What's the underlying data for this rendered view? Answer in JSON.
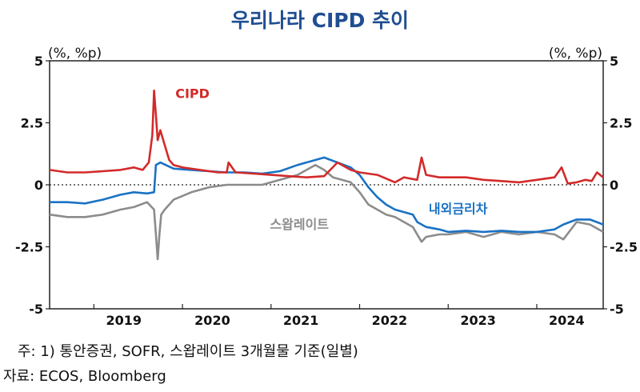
{
  "title": "우리나라 CIPD 추이",
  "units": {
    "left": "(%, %p)",
    "right": "(%, %p)"
  },
  "notes": {
    "source_note": "주: 1) 통안증권, SOFR, 스왑레이트 3개월물 기준(일별)",
    "source": "자료: ECOS, Bloomberg"
  },
  "chart_data": {
    "type": "line",
    "title": "우리나라 CIPD 추이",
    "xlabel": "",
    "ylabel": "(%, %p)",
    "xlim": [
      2018.5,
      2024.75
    ],
    "ylim": [
      -5,
      5
    ],
    "x_ticks": [
      "2019",
      "2020",
      "2021",
      "2022",
      "2023",
      "2024"
    ],
    "x_tick_positions": [
      2019,
      2020,
      2021,
      2022,
      2023,
      2024
    ],
    "y_ticks": [
      5,
      2.5,
      0,
      -2.5,
      -5
    ],
    "y_tick_labels": [
      "5",
      "2.5",
      "0",
      "-2.5",
      "-5"
    ],
    "zero_line": "dotted",
    "grid": false,
    "series": [
      {
        "name": "CIPD",
        "color": "#d32a2a",
        "x": [
          2018.5,
          2018.7,
          2018.9,
          2019.1,
          2019.3,
          2019.45,
          2019.55,
          2019.62,
          2019.66,
          2019.68,
          2019.7,
          2019.72,
          2019.75,
          2019.8,
          2019.85,
          2019.9,
          2020.0,
          2020.2,
          2020.4,
          2020.5,
          2020.52,
          2020.6,
          2020.8,
          2021.0,
          2021.2,
          2021.4,
          2021.6,
          2021.75,
          2021.9,
          2022.0,
          2022.2,
          2022.4,
          2022.5,
          2022.65,
          2022.7,
          2022.75,
          2022.9,
          2023.0,
          2023.2,
          2023.4,
          2023.6,
          2023.8,
          2024.0,
          2024.2,
          2024.28,
          2024.35,
          2024.45,
          2024.55,
          2024.62,
          2024.68,
          2024.75
        ],
        "values": [
          0.6,
          0.5,
          0.5,
          0.55,
          0.6,
          0.7,
          0.6,
          0.9,
          2.0,
          3.8,
          2.8,
          1.8,
          2.2,
          1.6,
          1.0,
          0.8,
          0.7,
          0.6,
          0.5,
          0.5,
          0.9,
          0.5,
          0.45,
          0.4,
          0.35,
          0.3,
          0.35,
          0.9,
          0.6,
          0.5,
          0.4,
          0.1,
          0.3,
          0.2,
          1.1,
          0.4,
          0.3,
          0.3,
          0.3,
          0.2,
          0.15,
          0.1,
          0.2,
          0.3,
          0.7,
          0.05,
          0.1,
          0.2,
          0.15,
          0.5,
          0.3
        ]
      },
      {
        "name": "내외금리차",
        "color": "#1a72c4",
        "x": [
          2018.5,
          2018.7,
          2018.9,
          2019.1,
          2019.3,
          2019.45,
          2019.6,
          2019.68,
          2019.7,
          2019.75,
          2019.9,
          2020.1,
          2020.3,
          2020.5,
          2020.7,
          2020.9,
          2021.1,
          2021.3,
          2021.5,
          2021.6,
          2021.75,
          2021.9,
          2022.0,
          2022.1,
          2022.2,
          2022.3,
          2022.4,
          2022.5,
          2022.6,
          2022.65,
          2022.75,
          2022.9,
          2023.0,
          2023.2,
          2023.4,
          2023.6,
          2023.8,
          2024.0,
          2024.2,
          2024.3,
          2024.45,
          2024.6,
          2024.75
        ],
        "values": [
          -0.7,
          -0.7,
          -0.75,
          -0.6,
          -0.4,
          -0.3,
          -0.35,
          -0.3,
          0.8,
          0.9,
          0.65,
          0.6,
          0.55,
          0.5,
          0.5,
          0.45,
          0.55,
          0.8,
          1.0,
          1.1,
          0.9,
          0.7,
          0.4,
          -0.1,
          -0.5,
          -0.8,
          -1.0,
          -1.1,
          -1.2,
          -1.5,
          -1.7,
          -1.8,
          -1.9,
          -1.85,
          -1.9,
          -1.85,
          -1.9,
          -1.9,
          -1.8,
          -1.6,
          -1.4,
          -1.4,
          -1.6
        ]
      },
      {
        "name": "스왑레이트",
        "color": "#8c8c8c",
        "x": [
          2018.5,
          2018.7,
          2018.9,
          2019.1,
          2019.3,
          2019.45,
          2019.6,
          2019.68,
          2019.7,
          2019.72,
          2019.74,
          2019.76,
          2019.8,
          2019.9,
          2020.1,
          2020.3,
          2020.5,
          2020.7,
          2020.9,
          2021.1,
          2021.3,
          2021.5,
          2021.6,
          2021.7,
          2021.8,
          2021.9,
          2022.0,
          2022.1,
          2022.2,
          2022.3,
          2022.4,
          2022.5,
          2022.6,
          2022.7,
          2022.75,
          2022.9,
          2023.0,
          2023.2,
          2023.4,
          2023.6,
          2023.8,
          2024.0,
          2024.2,
          2024.3,
          2024.45,
          2024.6,
          2024.75
        ],
        "values": [
          -1.2,
          -1.3,
          -1.3,
          -1.2,
          -1.0,
          -0.9,
          -0.7,
          -1.0,
          -2.0,
          -3.0,
          -2.0,
          -1.2,
          -1.0,
          -0.6,
          -0.3,
          -0.1,
          0.0,
          0.0,
          0.0,
          0.2,
          0.4,
          0.8,
          0.6,
          0.3,
          0.2,
          0.1,
          -0.3,
          -0.8,
          -1.0,
          -1.2,
          -1.3,
          -1.5,
          -1.7,
          -2.3,
          -2.1,
          -2.0,
          -2.0,
          -1.9,
          -2.1,
          -1.9,
          -2.0,
          -1.9,
          -2.0,
          -2.2,
          -1.5,
          -1.6,
          -1.9
        ]
      }
    ],
    "annotations": [
      {
        "text": "CIPD",
        "series": "CIPD"
      },
      {
        "text": "내외금리차",
        "series": "내외금리차"
      },
      {
        "text": "스왑레이트",
        "series": "스왑레이트"
      }
    ]
  }
}
